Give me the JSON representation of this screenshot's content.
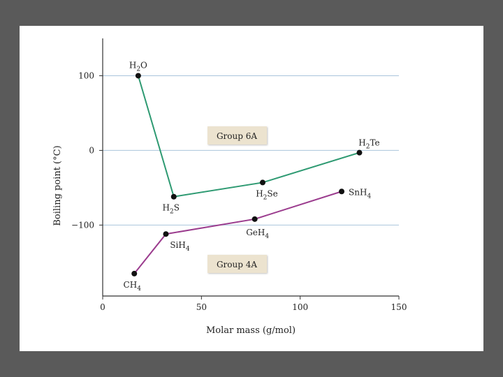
{
  "chart_data": {
    "type": "line",
    "xlabel": "Molar mass (g/mol)",
    "ylabel": "Boiling point (°C)",
    "xlim": [
      0,
      150
    ],
    "ylim": [
      -195,
      150
    ],
    "x_ticks": [
      0,
      50,
      100,
      150
    ],
    "y_ticks": [
      100,
      0,
      -100
    ],
    "grid": "horizontal",
    "colors": {
      "group6": "#2e9a72",
      "group4": "#9b3c8e",
      "grid": "#a9c4dc",
      "axis": "#333333"
    },
    "series": [
      {
        "name": "Group 6A",
        "color_key": "group6",
        "points": [
          {
            "x": 18,
            "y": 100,
            "label_main": "H",
            "label_sub": "2",
            "label_tail": "O"
          },
          {
            "x": 36,
            "y": -62,
            "label_main": "H",
            "label_sub": "2",
            "label_tail": "S"
          },
          {
            "x": 81,
            "y": -43,
            "label_main": "H",
            "label_sub": "2",
            "label_tail": "Se"
          },
          {
            "x": 130,
            "y": -3,
            "label_main": "H",
            "label_sub": "2",
            "label_tail": "Te"
          }
        ]
      },
      {
        "name": "Group 4A",
        "color_key": "group4",
        "points": [
          {
            "x": 16,
            "y": -165,
            "label_main": "CH",
            "label_sub": "4",
            "label_tail": ""
          },
          {
            "x": 32,
            "y": -112,
            "label_main": "SiH",
            "label_sub": "4",
            "label_tail": ""
          },
          {
            "x": 77,
            "y": -92,
            "label_main": "GeH",
            "label_sub": "4",
            "label_tail": ""
          },
          {
            "x": 121,
            "y": -55,
            "label_main": "SnH",
            "label_sub": "4",
            "label_tail": ""
          }
        ]
      }
    ]
  }
}
